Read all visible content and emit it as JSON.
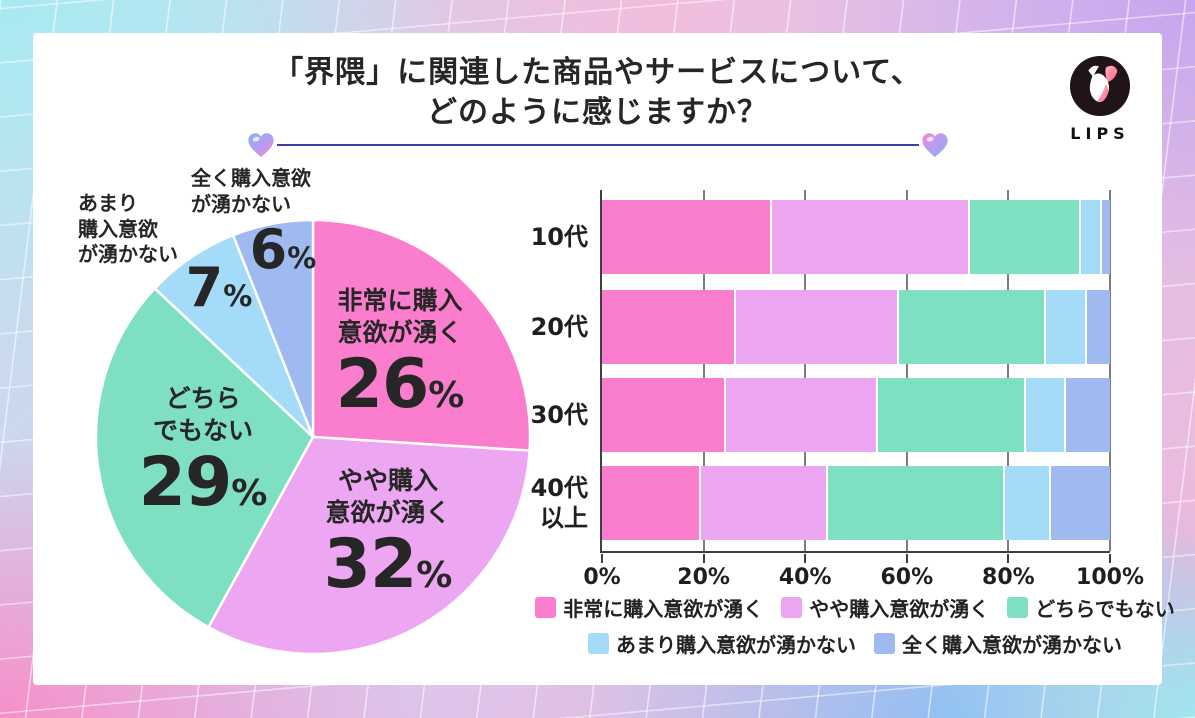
{
  "title": {
    "line1": "「界隈」に関連した商品やサービスについて、",
    "line2": "どのように感じますか？"
  },
  "brand": {
    "name": "LIPS"
  },
  "percent_sign": "%",
  "colors": {
    "very_want": "#FB7ECE",
    "somewhat_want": "#EDA7F2",
    "neutral": "#7FDFC2",
    "not_much_want": "#A3DBF8",
    "no_want_at_all": "#9EBAF0",
    "divider_line": "#3C3FA9",
    "axis": "#3F3F3F",
    "gridline": "#7D7D7D",
    "text": "#262626"
  },
  "chart_data": [
    {
      "type": "pie",
      "start_angle": "top",
      "direction": "clockwise",
      "labels": [
        "非常に購入意欲が湧く",
        "やや購入意欲が湧く",
        "どちらでもない",
        "あまり購入意欲が湧かない",
        "全く購入意欲が湧かない"
      ],
      "display_labels": [
        "非常に購入\n意欲が湧く",
        "やや購入\n意欲が湧く",
        "どちら\nでもない",
        "あまり\n購入意欲\nが湧かない",
        "全く購入意欲\nが湧かない"
      ],
      "values": [
        26,
        32,
        29,
        7,
        6
      ],
      "unit": "%",
      "colors": [
        "#FB7ECE",
        "#EDA7F2",
        "#7FDFC2",
        "#A3DBF8",
        "#9EBAF0"
      ]
    },
    {
      "type": "bar",
      "orientation": "horizontal-stacked",
      "categories": [
        "10代",
        "20代",
        "30代",
        "40代以上"
      ],
      "categories_display": [
        "10代",
        "20代",
        "30代",
        "40代\n以上"
      ],
      "series": [
        {
          "name": "非常に購入意欲が湧く",
          "values": [
            33,
            26,
            24,
            19
          ]
        },
        {
          "name": "やや購入意欲が湧く",
          "values": [
            39,
            32,
            30,
            25
          ]
        },
        {
          "name": "どちらでもない",
          "values": [
            22,
            29,
            29,
            35
          ]
        },
        {
          "name": "あまり購入意欲が湧かない",
          "values": [
            4,
            8,
            8,
            9
          ]
        },
        {
          "name": "全く購入意欲が湧かない",
          "values": [
            2,
            5,
            9,
            12
          ]
        }
      ],
      "colors": [
        "#FB7ECE",
        "#EDA7F2",
        "#7FDFC2",
        "#A3DBF8",
        "#9EBAF0"
      ],
      "x_ticks": [
        "0%",
        "20%",
        "40%",
        "60%",
        "80%",
        "100%"
      ],
      "xlim": [
        0,
        100
      ],
      "grid": true,
      "legend_position": "bottom"
    }
  ]
}
